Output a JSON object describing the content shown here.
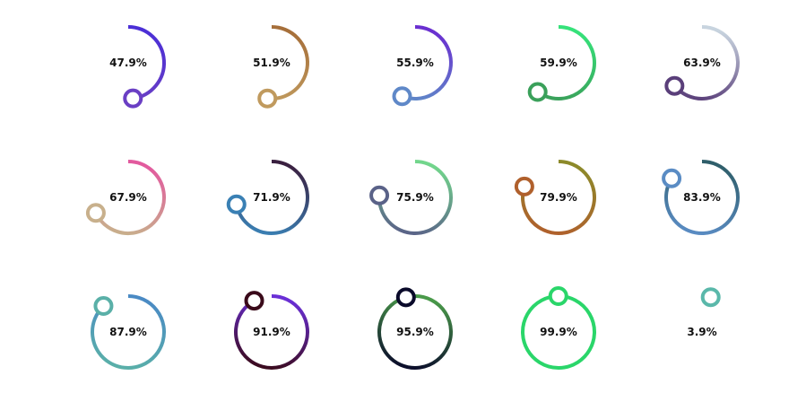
{
  "chart_data": {
    "type": "radial-progress",
    "gauges": [
      {
        "label": "47.9%",
        "value": 47.9,
        "colors": [
          "#4b2fd6",
          "#6a3fc4"
        ]
      },
      {
        "label": "51.9%",
        "value": 51.9,
        "colors": [
          "#a66f3a",
          "#c09a5e"
        ]
      },
      {
        "label": "55.9%",
        "value": 55.9,
        "colors": [
          "#6a2fd0",
          "#5f88c8"
        ]
      },
      {
        "label": "59.9%",
        "value": 59.9,
        "colors": [
          "#36e27a",
          "#3aa05a"
        ]
      },
      {
        "label": "63.9%",
        "value": 63.9,
        "colors": [
          "#c8d4df",
          "#5a3f7a"
        ]
      },
      {
        "label": "67.9%",
        "value": 67.9,
        "colors": [
          "#e25a9e",
          "#c8b08c"
        ]
      },
      {
        "label": "71.9%",
        "value": 71.9,
        "colors": [
          "#3a2040",
          "#3a80b4"
        ]
      },
      {
        "label": "75.9%",
        "value": 75.9,
        "colors": [
          "#72d68c",
          "#5a6288"
        ]
      },
      {
        "label": "79.9%",
        "value": 79.9,
        "colors": [
          "#8c8a2a",
          "#b0602c"
        ]
      },
      {
        "label": "83.9%",
        "value": 83.9,
        "colors": [
          "#2f5e6a",
          "#5a8cc4"
        ]
      },
      {
        "label": "87.9%",
        "value": 87.9,
        "colors": [
          "#4a8ac4",
          "#5ab0a8"
        ]
      },
      {
        "label": "91.9%",
        "value": 91.9,
        "colors": [
          "#6a2fd6",
          "#3a0a1a"
        ]
      },
      {
        "label": "95.9%",
        "value": 95.9,
        "colors": [
          "#4a9a4a",
          "#0a0a2a"
        ]
      },
      {
        "label": "99.9%",
        "value": 99.9,
        "colors": [
          "#2ad66a",
          "#2ad66a"
        ]
      },
      {
        "label": "3.9%",
        "value": 3.9,
        "colors": [
          "#5ab8aa",
          "#5ab8aa"
        ]
      }
    ]
  }
}
